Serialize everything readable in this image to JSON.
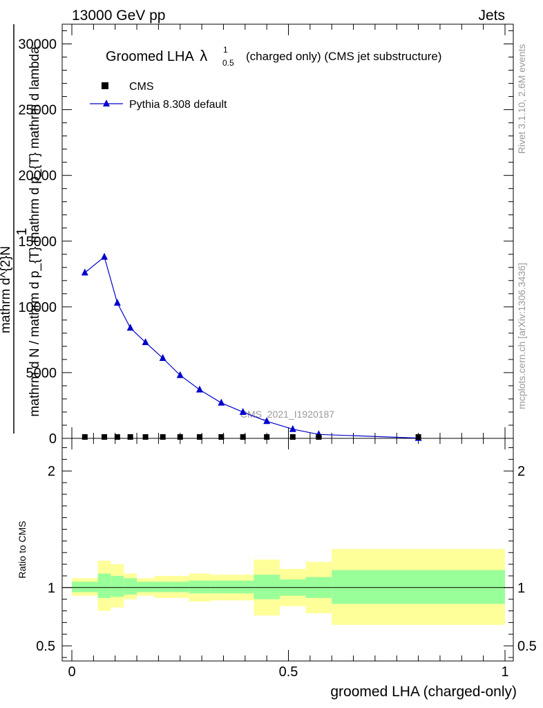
{
  "header": {
    "left": "13000 GeV pp",
    "right": "Jets"
  },
  "side": {
    "rivet": "Rivet 3.1.10,  2.6M events",
    "mcplots": "mcplots.cern.ch [arXiv:1306.3436]"
  },
  "watermark": "CMS_2021_I1920187",
  "chart_data": {
    "type": "scatter",
    "title_main": "Groomed LHA",
    "title_lambda": "λ",
    "title_sup": "1",
    "title_sub": "0.5",
    "title_tail": "(charged only) (CMS jet substructure)",
    "ylabel_numerator": "mathrm d^{2}N",
    "ylabel_one": "1",
    "ylabel_denominator": "mathrm d N / mathrm d p_{T} mathrm d p_{T} mathrm d lambda",
    "xlabel": "groomed LHA (charged-only)",
    "ratio_ylabel": "Ratio to CMS",
    "xlim": [
      0,
      1
    ],
    "ylim": [
      0,
      31500
    ],
    "ratio_ylim": [
      0.37,
      2.28
    ],
    "x_ticks": [
      "0",
      "0.5",
      "1"
    ],
    "x_tick_values": [
      0,
      0.5,
      1
    ],
    "y_ticks": [
      "0",
      "5000",
      "10000",
      "15000",
      "20000",
      "25000",
      "30000"
    ],
    "y_tick_values": [
      0,
      5000,
      10000,
      15000,
      20000,
      25000,
      30000
    ],
    "ratio_ticks": [
      "0.5",
      "1",
      "2"
    ],
    "ratio_tick_values": [
      0.5,
      1,
      2
    ],
    "legend": [
      "CMS",
      "Pythia 8.308 default"
    ],
    "series": [
      {
        "name": "CMS",
        "x": [
          0.03,
          0.075,
          0.105,
          0.135,
          0.17,
          0.21,
          0.25,
          0.295,
          0.345,
          0.395,
          0.45,
          0.51,
          0.57,
          0.8
        ],
        "values": [
          0,
          0,
          0,
          0,
          0,
          0,
          0,
          0,
          0,
          0,
          0,
          0,
          0,
          0
        ]
      },
      {
        "name": "Pythia 8.308 default",
        "x": [
          0.03,
          0.075,
          0.105,
          0.135,
          0.17,
          0.21,
          0.25,
          0.295,
          0.345,
          0.395,
          0.45,
          0.51,
          0.57,
          0.8
        ],
        "values": [
          12600,
          13800,
          10300,
          8400,
          7300,
          6100,
          4800,
          3700,
          2700,
          2000,
          1300,
          700,
          300,
          20
        ]
      }
    ],
    "ratio_bands": [
      {
        "x0": 0.0,
        "x1": 0.06,
        "green": [
          0.96,
          1.05
        ],
        "yellow": [
          0.93,
          1.08
        ]
      },
      {
        "x0": 0.06,
        "x1": 0.09,
        "green": [
          0.91,
          1.12
        ],
        "yellow": [
          0.8,
          1.23
        ]
      },
      {
        "x0": 0.09,
        "x1": 0.12,
        "green": [
          0.92,
          1.1
        ],
        "yellow": [
          0.83,
          1.2
        ]
      },
      {
        "x0": 0.12,
        "x1": 0.15,
        "green": [
          0.94,
          1.08
        ],
        "yellow": [
          0.9,
          1.12
        ]
      },
      {
        "x0": 0.15,
        "x1": 0.19,
        "green": [
          0.96,
          1.05
        ],
        "yellow": [
          0.93,
          1.08
        ]
      },
      {
        "x0": 0.19,
        "x1": 0.23,
        "green": [
          0.96,
          1.05
        ],
        "yellow": [
          0.91,
          1.1
        ]
      },
      {
        "x0": 0.23,
        "x1": 0.27,
        "green": [
          0.96,
          1.05
        ],
        "yellow": [
          0.91,
          1.1
        ]
      },
      {
        "x0": 0.27,
        "x1": 0.32,
        "green": [
          0.95,
          1.06
        ],
        "yellow": [
          0.88,
          1.12
        ]
      },
      {
        "x0": 0.32,
        "x1": 0.37,
        "green": [
          0.95,
          1.06
        ],
        "yellow": [
          0.89,
          1.11
        ]
      },
      {
        "x0": 0.37,
        "x1": 0.42,
        "green": [
          0.95,
          1.06
        ],
        "yellow": [
          0.89,
          1.11
        ]
      },
      {
        "x0": 0.42,
        "x1": 0.48,
        "green": [
          0.9,
          1.11
        ],
        "yellow": [
          0.76,
          1.24
        ]
      },
      {
        "x0": 0.48,
        "x1": 0.54,
        "green": [
          0.93,
          1.07
        ],
        "yellow": [
          0.84,
          1.16
        ]
      },
      {
        "x0": 0.54,
        "x1": 0.6,
        "green": [
          0.91,
          1.09
        ],
        "yellow": [
          0.78,
          1.22
        ]
      },
      {
        "x0": 0.6,
        "x1": 1.0,
        "green": [
          0.86,
          1.15
        ],
        "yellow": [
          0.68,
          1.33
        ]
      }
    ],
    "colors": {
      "mc": "#0000cc",
      "data": "#000000",
      "green": "#99ff99",
      "yellow": "#ffff99"
    }
  }
}
